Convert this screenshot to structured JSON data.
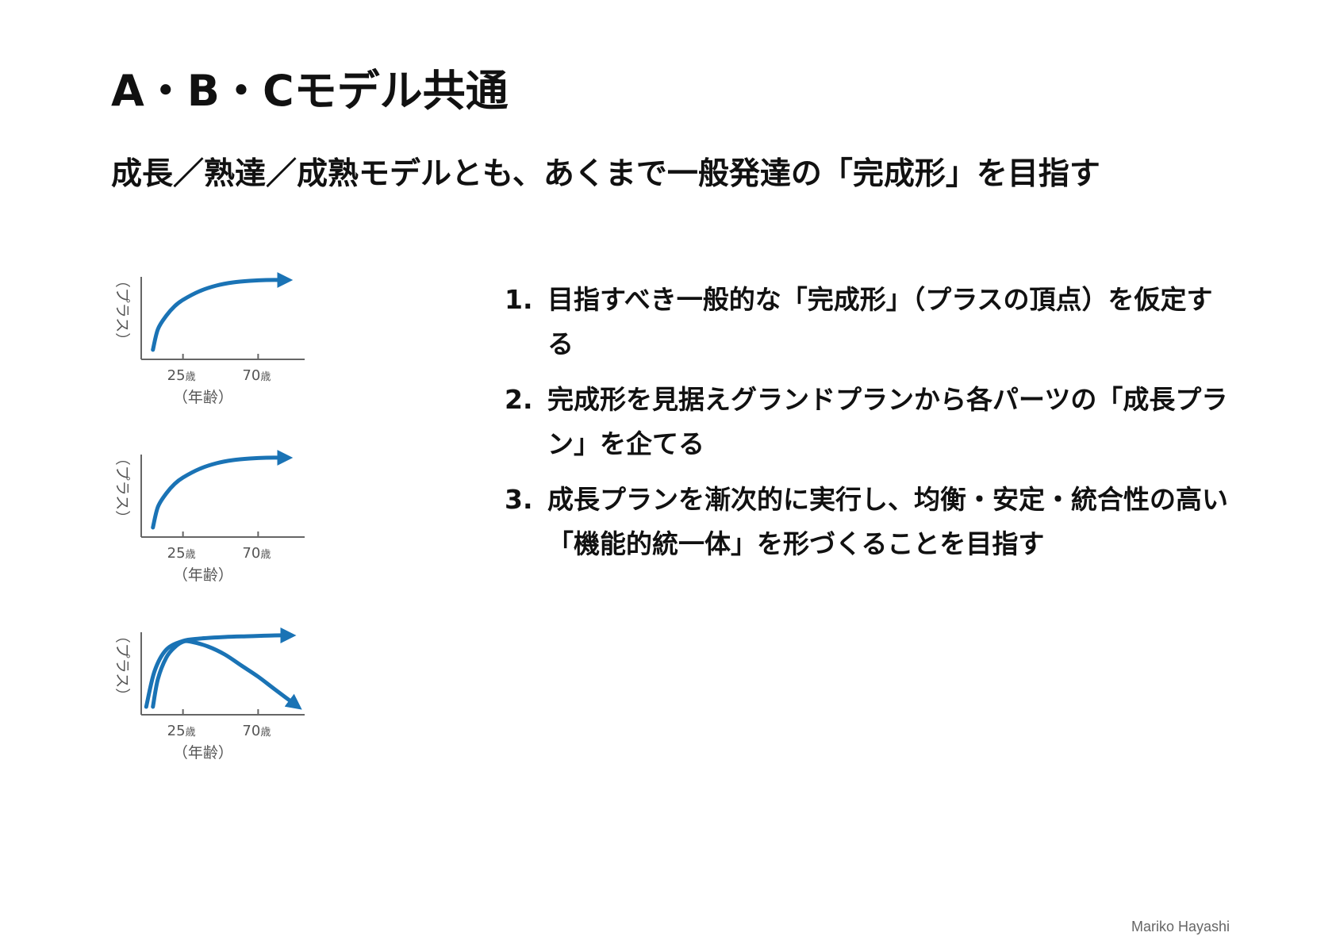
{
  "header": {
    "title": "A・B・Cモデル共通",
    "subtitle": "成長／熟達／成熟モデルとも、あくまで一般発達の「完成形」を目指す"
  },
  "points": [
    {
      "num": "1.",
      "text": "目指すべき一般的な「完成形」（プラスの頂点）を仮定する"
    },
    {
      "num": "2.",
      "text": "完成形を見据えグランドプランから各パーツの「成長プラン」を企てる"
    },
    {
      "num": "3.",
      "text": "成長プランを漸次的に実行し、均衡・安定・統合性の高い「機能的統一体」を形づくることを目指す"
    }
  ],
  "footer": {
    "author": "Mariko Hayashi"
  },
  "colors": {
    "curve": "#1a73b5",
    "axis": "#666666",
    "label": "#555555"
  },
  "chart_data": [
    {
      "type": "line",
      "ylabel": "（プラス）",
      "xlabel": "（年齢）",
      "xticks": [
        {
          "value": 25,
          "label": "25",
          "unit": "歳"
        },
        {
          "value": 70,
          "label": "70",
          "unit": "歳"
        }
      ],
      "xlim": [
        0,
        95
      ],
      "ylim": [
        0,
        1
      ],
      "series": [
        {
          "x": [
            7,
            10,
            15,
            20,
            25,
            35,
            45,
            55,
            65,
            75,
            88
          ],
          "y": [
            0.12,
            0.38,
            0.55,
            0.67,
            0.75,
            0.86,
            0.93,
            0.97,
            0.99,
            1.0,
            1.0
          ]
        }
      ]
    },
    {
      "type": "line",
      "ylabel": "（プラス）",
      "xlabel": "（年齢）",
      "xticks": [
        {
          "value": 25,
          "label": "25",
          "unit": "歳"
        },
        {
          "value": 70,
          "label": "70",
          "unit": "歳"
        }
      ],
      "xlim": [
        0,
        95
      ],
      "ylim": [
        0,
        1
      ],
      "series": [
        {
          "x": [
            7,
            10,
            15,
            20,
            25,
            35,
            45,
            55,
            65,
            75,
            88
          ],
          "y": [
            0.12,
            0.38,
            0.55,
            0.67,
            0.75,
            0.86,
            0.93,
            0.97,
            0.99,
            1.0,
            1.0
          ]
        }
      ]
    },
    {
      "type": "line",
      "ylabel": "（プラス）",
      "xlabel": "（年齢）",
      "xticks": [
        {
          "value": 25,
          "label": "25",
          "unit": "歳"
        },
        {
          "value": 70,
          "label": "70",
          "unit": "歳"
        }
      ],
      "xlim": [
        0,
        95
      ],
      "ylim": [
        0,
        1
      ],
      "series": [
        {
          "x": [
            3,
            8,
            15,
            25,
            35,
            50,
            65,
            80,
            90
          ],
          "y": [
            0.1,
            0.55,
            0.82,
            0.93,
            0.96,
            0.98,
            0.99,
            1.0,
            1.0
          ]
        },
        {
          "x": [
            7,
            10,
            15,
            20,
            25,
            30,
            40,
            50,
            60,
            70,
            80,
            94
          ],
          "y": [
            0.1,
            0.45,
            0.72,
            0.85,
            0.92,
            0.92,
            0.86,
            0.76,
            0.62,
            0.48,
            0.32,
            0.1
          ]
        }
      ]
    }
  ]
}
